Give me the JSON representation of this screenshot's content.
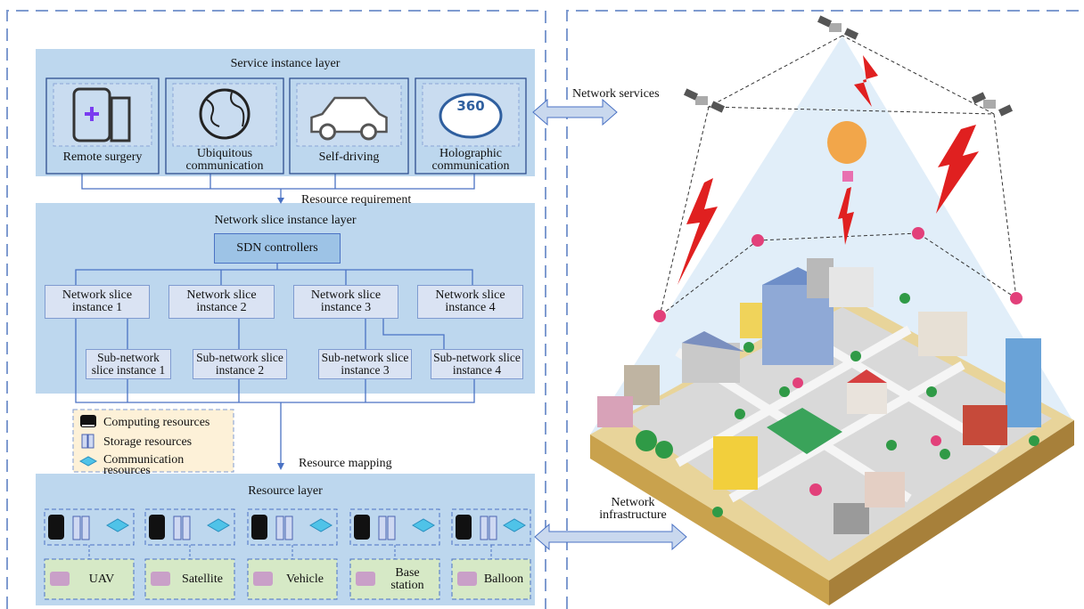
{
  "service_layer": {
    "title": "Service instance layer",
    "services": [
      "Remote surgery",
      "Ubiquitous communication",
      "Self-driving",
      "Holographic communication"
    ],
    "icon_text": "360"
  },
  "resource_requirement": "Resource requirement",
  "slice_layer": {
    "title": "Network slice instance layer",
    "controller": "SDN controllers",
    "slices": [
      "Network slice instance 1",
      "Network slice instance 2",
      "Network slice instance 3",
      "Network slice instance 4"
    ],
    "sub_slices": [
      "Sub-network slice instance 1",
      "Sub-network slice instance 2",
      "Sub-network slice instance 3",
      "Sub-network slice instance 4"
    ]
  },
  "legend": [
    "Computing resources",
    "Storage resources",
    "Communication resources"
  ],
  "resource_mapping": "Resource mapping",
  "resource_layer": {
    "title": "Resource layer",
    "nodes": [
      "UAV",
      "Satellite",
      "Vehicle",
      "Base station",
      "Balloon"
    ]
  },
  "network_services": "Network services",
  "network_infrastructure": "Network infrastructure"
}
